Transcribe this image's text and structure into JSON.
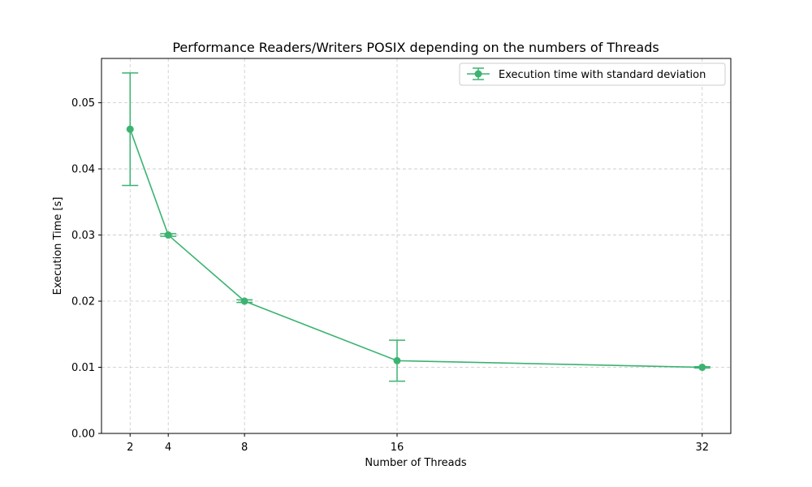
{
  "chart_data": {
    "type": "line",
    "title": "Performance Readers/Writers POSIX depending on the numbers of Threads",
    "xlabel": "Number of Threads",
    "ylabel": "Execution Time [s]",
    "xlim": [
      0.5,
      33.5
    ],
    "ylim": [
      0,
      0.0567
    ],
    "xticks": [
      2,
      4,
      8,
      16,
      32
    ],
    "xtick_labels": [
      "2",
      "4",
      "8",
      "16",
      "32"
    ],
    "yticks": [
      0.0,
      0.01,
      0.02,
      0.03,
      0.04,
      0.05
    ],
    "ytick_labels": [
      "0.00",
      "0.01",
      "0.02",
      "0.03",
      "0.04",
      "0.05"
    ],
    "grid": true,
    "legend_position": "upper-right",
    "series": [
      {
        "name": "Execution time with standard deviation",
        "color": "#3cb371",
        "x": [
          2,
          4,
          8,
          16,
          32
        ],
        "y": [
          0.046,
          0.03,
          0.02,
          0.011,
          0.01
        ],
        "yerr": [
          0.0085,
          0.0002,
          0.0002,
          0.0031,
          0.0001
        ],
        "marker": "circle"
      }
    ]
  }
}
